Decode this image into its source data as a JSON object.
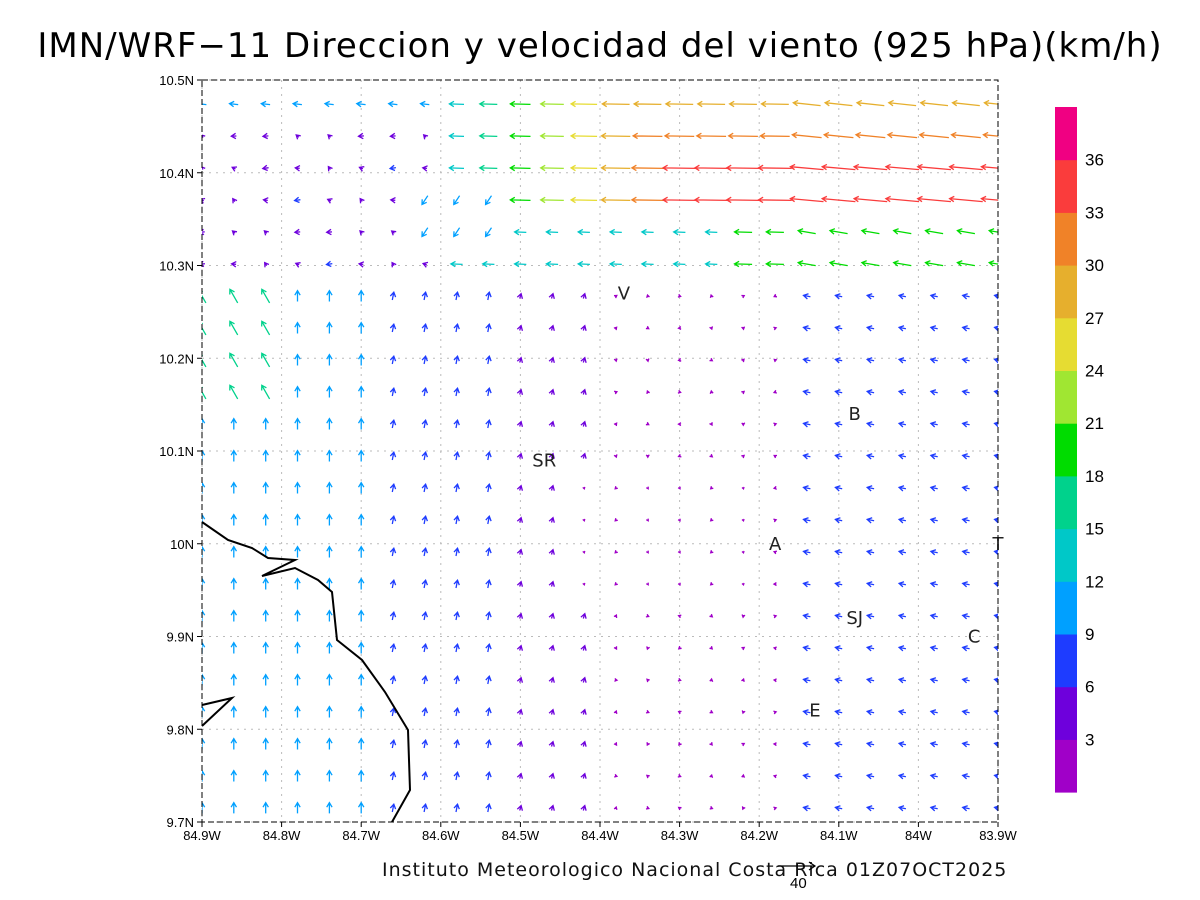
{
  "title": "IMN/WRF−11 Direccion y velocidad del viento (925 hPa)(km/h)",
  "credit": "Instituto Meteorologico Nacional Costa Rica 01Z07OCT2025",
  "reference_vector_label": "40",
  "chart_data": {
    "type": "vector_field",
    "title": "IMN/WRF−11 Direccion y velocidad del viento (925 hPa)(km/h)",
    "units": "km/h",
    "level": "925 hPa",
    "lon_range": [
      -84.9,
      -83.9
    ],
    "lat_range": [
      9.7,
      10.5
    ],
    "x_tick_labels": [
      "84.9W",
      "84.8W",
      "84.7W",
      "84.6W",
      "84.5W",
      "84.4W",
      "84.3W",
      "84.2W",
      "84.1W",
      "84W",
      "83.9W"
    ],
    "y_tick_labels": [
      "9.7N",
      "9.8N",
      "9.9N",
      "10N",
      "10.1N",
      "10.2N",
      "10.3N",
      "10.4N",
      "10.5N"
    ],
    "grid": true,
    "reference_vector_kmh": 40,
    "colorbar": {
      "levels": [
        3,
        6,
        9,
        12,
        15,
        18,
        21,
        24,
        27,
        30,
        33,
        36
      ],
      "colors": [
        "#a000c8",
        "#6e00dc",
        "#1e3cff",
        "#00a0ff",
        "#00c8c8",
        "#00d28c",
        "#00dc00",
        "#a0e632",
        "#e6dc32",
        "#e6af2d",
        "#f08228",
        "#fa3c3c",
        "#f00082"
      ]
    },
    "places": [
      {
        "label": "V",
        "lon": -84.37,
        "lat": 10.27
      },
      {
        "label": "SR",
        "lon": -84.47,
        "lat": 10.09
      },
      {
        "label": "B",
        "lon": -84.08,
        "lat": 10.14
      },
      {
        "label": "A",
        "lon": -84.18,
        "lat": 10.0
      },
      {
        "label": "SJ",
        "lon": -84.08,
        "lat": 9.92
      },
      {
        "label": "C",
        "lon": -83.93,
        "lat": 9.9
      },
      {
        "label": "E",
        "lon": -84.13,
        "lat": 9.82
      },
      {
        "label": "T",
        "lon": -83.9,
        "lat": 10.0
      }
    ]
  }
}
